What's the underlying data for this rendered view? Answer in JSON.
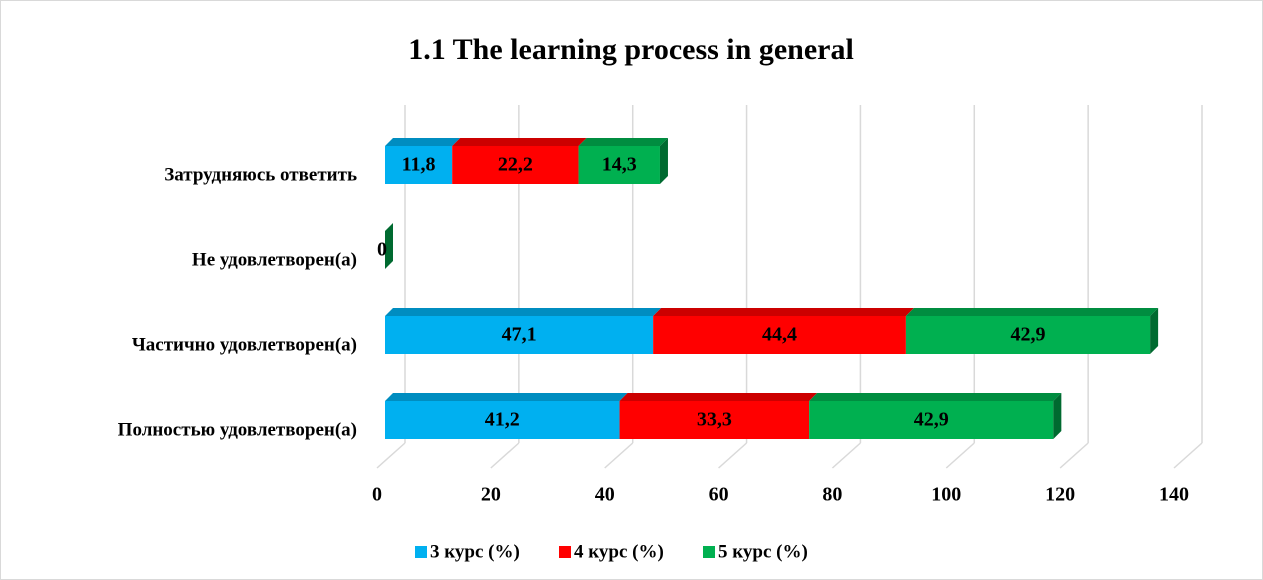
{
  "chart_data": {
    "type": "bar",
    "orientation": "horizontal",
    "stacked": true,
    "title": "1.1 The learning process in general",
    "categories": [
      "Затрудняюсь ответить",
      "Не удовлетворен(а)",
      "Частично удовлетворен(а)",
      "Полностью удовлетворен(а)"
    ],
    "series": [
      {
        "name": "3 курс (%)",
        "color": "#00b0f0",
        "values": [
          11.8,
          0,
          47.1,
          41.2
        ],
        "value_labels": [
          "11,8",
          null,
          "47,1",
          "41,2"
        ]
      },
      {
        "name": "4 курс (%)",
        "color": "#ff0000",
        "values": [
          22.2,
          0,
          44.4,
          33.3
        ],
        "value_labels": [
          "22,2",
          null,
          "44,4",
          "33,3"
        ]
      },
      {
        "name": "5 курс (%)",
        "color": "#00b050",
        "values": [
          14.3,
          0,
          42.9,
          42.9
        ],
        "value_labels": [
          "14,3",
          "0",
          "42,9",
          "42,9"
        ]
      }
    ],
    "xlim": [
      0,
      140
    ],
    "xticks": [
      0,
      20,
      40,
      60,
      80,
      100,
      120,
      140
    ],
    "grid": true,
    "legend": "bottom"
  }
}
